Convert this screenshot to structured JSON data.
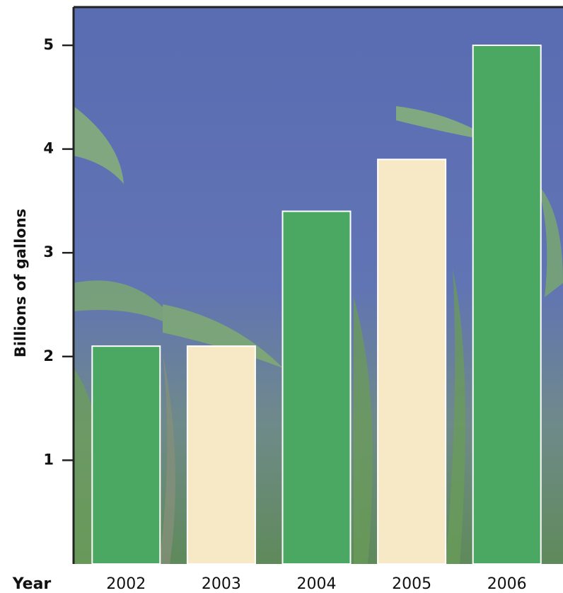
{
  "chart_data": {
    "type": "bar",
    "y_label": "Billions of gallons",
    "x_label": "Year",
    "categories": [
      "2002",
      "2003",
      "2004",
      "2005",
      "2006"
    ],
    "values": [
      2.1,
      2.1,
      3.4,
      3.9,
      5.0
    ],
    "colors": [
      "#4aa862",
      "#f8e9c6",
      "#4aa862",
      "#f8e9c6",
      "#4aa862"
    ],
    "ylim": [
      0,
      5.4
    ],
    "yticks": [
      1,
      2,
      3,
      4,
      5
    ],
    "grid": false
  }
}
